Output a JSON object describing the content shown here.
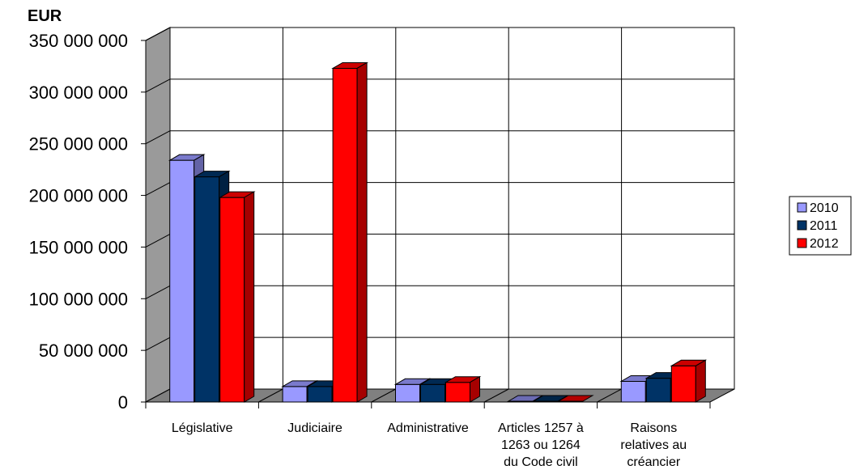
{
  "chart_data": {
    "type": "bar",
    "unit_label": "EUR",
    "categories": [
      [
        "Législative"
      ],
      [
        "Judiciaire"
      ],
      [
        "Administrative"
      ],
      [
        "Articles 1257 à",
        "1263 ou 1264",
        "du Code civil"
      ],
      [
        "Raisons",
        "relatives au",
        "créancier"
      ]
    ],
    "series": [
      {
        "name": "2010",
        "color": "#9999ff",
        "values": [
          234000000,
          15000000,
          17000000,
          0,
          20000000
        ]
      },
      {
        "name": "2011",
        "color": "#003366",
        "values": [
          218000000,
          15000000,
          17000000,
          0,
          23000000
        ]
      },
      {
        "name": "2012",
        "color": "#ff0000",
        "values": [
          198000000,
          323000000,
          19000000,
          0,
          35000000
        ]
      }
    ],
    "yticks": [
      "0",
      "50 000 000",
      "100 000 000",
      "150 000 000",
      "200 000 000",
      "250 000 000",
      "300 000 000",
      "350 000 000"
    ],
    "ylim": [
      0,
      350000000
    ],
    "grid": true,
    "legend_position": "right"
  }
}
